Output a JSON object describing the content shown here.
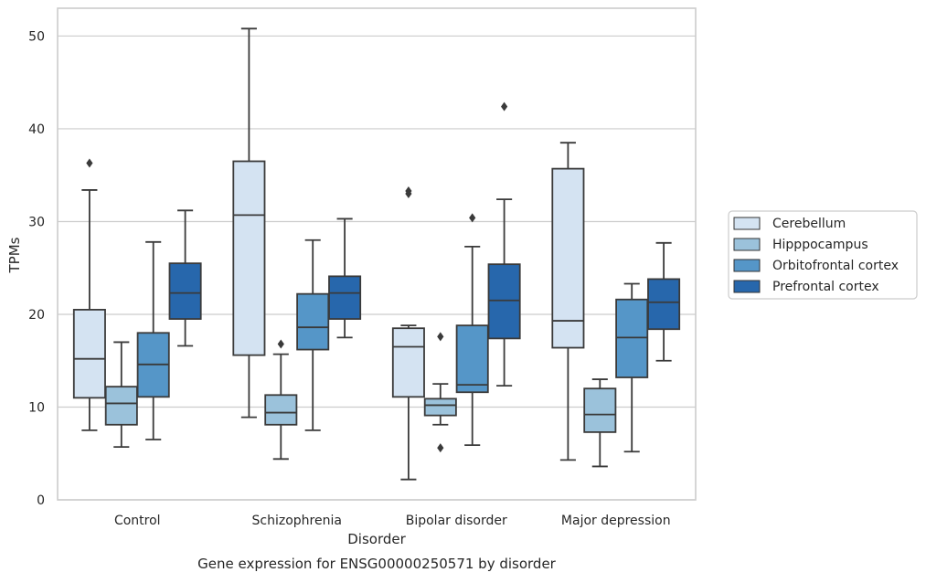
{
  "chart_data": {
    "type": "boxplot",
    "caption": "Gene expression for ENSG00000250571 by disorder",
    "xlabel": "Disorder",
    "ylabel": "TPMs",
    "ylim": [
      0,
      53
    ],
    "yticks": [
      0,
      10,
      20,
      30,
      40,
      50
    ],
    "grid": "horizontal",
    "legend_position": "right",
    "categories": [
      "Control",
      "Schizophrenia",
      "Bipolar disorder",
      "Major depression"
    ],
    "series": [
      {
        "name": "Cerebellum",
        "color": "#d4e3f2",
        "boxes": [
          {
            "q1": 11.0,
            "median": 15.2,
            "q3": 20.5,
            "whisker_low": 7.5,
            "whisker_high": 33.4,
            "outliers": [
              36.3
            ]
          },
          {
            "q1": 15.6,
            "median": 30.7,
            "q3": 36.5,
            "whisker_low": 8.9,
            "whisker_high": 50.8,
            "outliers": []
          },
          {
            "q1": 11.1,
            "median": 16.5,
            "q3": 18.5,
            "whisker_low": 2.2,
            "whisker_high": 18.8,
            "outliers": [
              33.0,
              33.3
            ]
          },
          {
            "q1": 16.4,
            "median": 19.3,
            "q3": 35.7,
            "whisker_low": 4.3,
            "whisker_high": 38.5,
            "outliers": []
          }
        ]
      },
      {
        "name": "Hipppocampus",
        "color": "#9bc2db",
        "boxes": [
          {
            "q1": 8.1,
            "median": 10.4,
            "q3": 12.2,
            "whisker_low": 5.7,
            "whisker_high": 17.0,
            "outliers": []
          },
          {
            "q1": 8.1,
            "median": 9.4,
            "q3": 11.3,
            "whisker_low": 4.4,
            "whisker_high": 15.7,
            "outliers": [
              16.8
            ]
          },
          {
            "q1": 9.1,
            "median": 10.2,
            "q3": 10.9,
            "whisker_low": 8.1,
            "whisker_high": 12.5,
            "outliers": [
              17.6,
              5.6
            ]
          },
          {
            "q1": 7.3,
            "median": 9.2,
            "q3": 12.0,
            "whisker_low": 3.6,
            "whisker_high": 13.0,
            "outliers": []
          }
        ]
      },
      {
        "name": "Orbitofrontal cortex",
        "color": "#5596c8",
        "boxes": [
          {
            "q1": 11.1,
            "median": 14.6,
            "q3": 18.0,
            "whisker_low": 6.5,
            "whisker_high": 27.8,
            "outliers": []
          },
          {
            "q1": 16.2,
            "median": 18.6,
            "q3": 22.2,
            "whisker_low": 7.5,
            "whisker_high": 28.0,
            "outliers": []
          },
          {
            "q1": 11.6,
            "median": 12.4,
            "q3": 18.8,
            "whisker_low": 5.9,
            "whisker_high": 27.3,
            "outliers": [
              30.4
            ]
          },
          {
            "q1": 13.2,
            "median": 17.5,
            "q3": 21.6,
            "whisker_low": 5.2,
            "whisker_high": 23.3,
            "outliers": []
          }
        ]
      },
      {
        "name": "Prefrontal cortex",
        "color": "#2767ac",
        "boxes": [
          {
            "q1": 19.5,
            "median": 22.3,
            "q3": 25.5,
            "whisker_low": 16.6,
            "whisker_high": 31.2,
            "outliers": []
          },
          {
            "q1": 19.5,
            "median": 22.3,
            "q3": 24.1,
            "whisker_low": 17.5,
            "whisker_high": 30.3,
            "outliers": []
          },
          {
            "q1": 17.4,
            "median": 21.5,
            "q3": 25.4,
            "whisker_low": 12.3,
            "whisker_high": 32.4,
            "outliers": [
              42.4
            ]
          },
          {
            "q1": 18.4,
            "median": 21.3,
            "q3": 23.8,
            "whisker_low": 15.0,
            "whisker_high": 27.7,
            "outliers": []
          }
        ]
      }
    ]
  }
}
